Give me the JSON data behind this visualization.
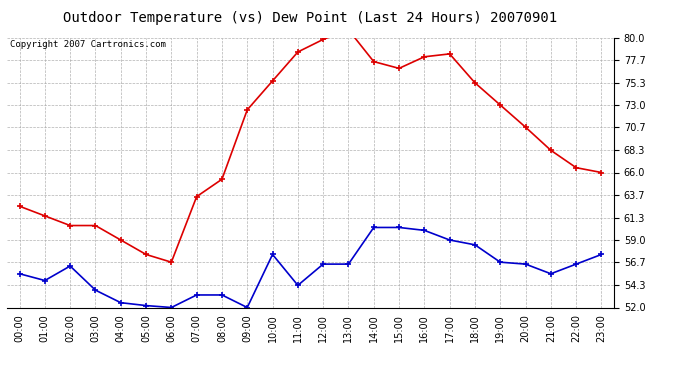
{
  "title": "Outdoor Temperature (vs) Dew Point (Last 24 Hours) 20070901",
  "copyright": "Copyright 2007 Cartronics.com",
  "hours": [
    "00:00",
    "01:00",
    "02:00",
    "03:00",
    "04:00",
    "05:00",
    "06:00",
    "07:00",
    "08:00",
    "09:00",
    "10:00",
    "11:00",
    "12:00",
    "13:00",
    "14:00",
    "15:00",
    "16:00",
    "17:00",
    "18:00",
    "19:00",
    "20:00",
    "21:00",
    "22:00",
    "23:00"
  ],
  "temp": [
    62.5,
    61.5,
    60.5,
    60.5,
    59.0,
    57.5,
    56.7,
    63.5,
    65.3,
    72.5,
    75.5,
    78.5,
    79.8,
    80.8,
    77.5,
    76.8,
    78.0,
    78.3,
    75.3,
    73.0,
    70.7,
    68.3,
    66.5,
    66.0
  ],
  "dew": [
    55.5,
    54.8,
    56.3,
    53.8,
    52.5,
    52.2,
    52.0,
    53.3,
    53.3,
    52.0,
    57.5,
    54.3,
    56.5,
    56.5,
    60.3,
    60.3,
    60.0,
    59.0,
    58.5,
    56.7,
    56.5,
    55.5,
    56.5,
    57.5
  ],
  "ylim": [
    52.0,
    80.0
  ],
  "yticks": [
    52.0,
    54.3,
    56.7,
    59.0,
    61.3,
    63.7,
    66.0,
    68.3,
    70.7,
    73.0,
    75.3,
    77.7,
    80.0
  ],
  "temp_color": "#dd0000",
  "dew_color": "#0000cc",
  "bg_color": "#ffffff",
  "grid_color": "#aaaaaa",
  "title_fontsize": 10,
  "copyright_fontsize": 6.5,
  "tick_fontsize": 7,
  "xlabel_fontsize": 7
}
